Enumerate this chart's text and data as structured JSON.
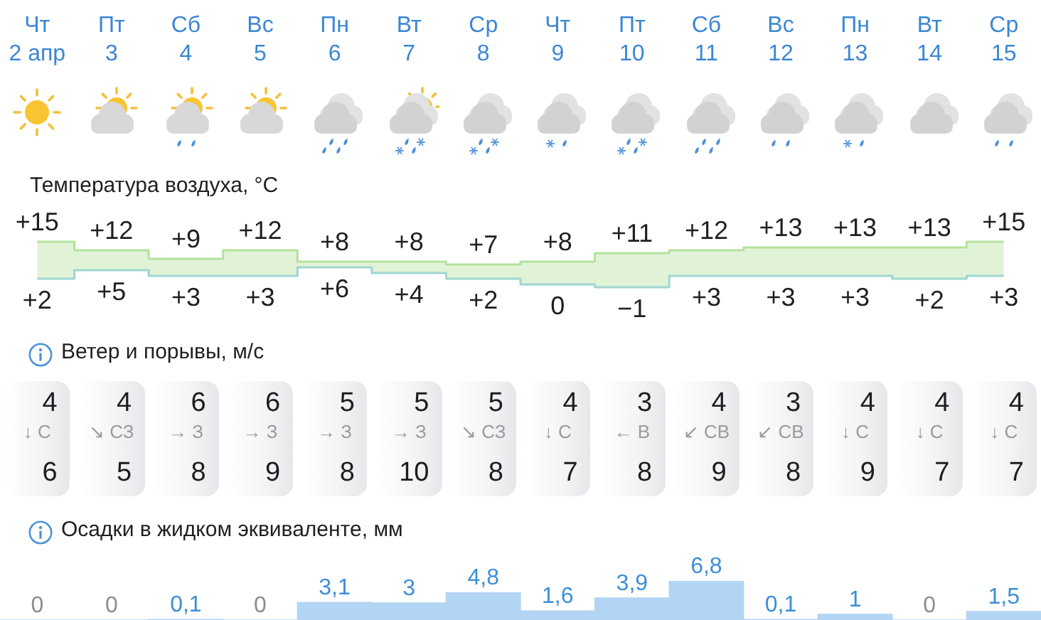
{
  "chart_data": [
    {
      "type": "step",
      "title": "Температура воздуха, °C",
      "categories": [
        "Чт\n2 апр",
        "Пт\n3",
        "Сб\n4",
        "Вс\n5",
        "Пн\n6",
        "Вт\n7",
        "Ср\n8",
        "Чт\n9",
        "Пт\n10",
        "Сб\n11",
        "Вс\n12",
        "Пн\n13",
        "Вт\n14",
        "Ср\n15"
      ],
      "tick_labels": "x",
      "series": [
        {
          "color": "#b4e29c",
          "values": [
            15,
            12,
            9,
            12,
            8,
            8,
            7,
            8,
            11,
            12,
            13,
            13,
            13,
            15
          ],
          "value_labels": [
            "+15",
            "+12",
            "+9",
            "+12",
            "+8",
            "+8",
            "+7",
            "+8",
            "+11",
            "+12",
            "+13",
            "+13",
            "+13",
            "+15"
          ],
          "lower": [
            2,
            5,
            3,
            3,
            6,
            4,
            2,
            0,
            -1,
            3,
            3,
            3,
            2,
            3
          ],
          "upper": [
            15,
            12,
            9,
            12,
            8,
            8,
            7,
            8,
            11,
            12,
            13,
            13,
            13,
            15
          ]
        },
        {
          "color": "#9fd6d0",
          "values": [
            2,
            5,
            3,
            3,
            6,
            4,
            2,
            0,
            -1,
            3,
            3,
            3,
            2,
            3
          ],
          "value_labels": [
            "+2",
            "+5",
            "+3",
            "+3",
            "+6",
            "+4",
            "+2",
            "0",
            "−1",
            "+3",
            "+3",
            "+3",
            "+2",
            "+3"
          ]
        }
      ]
    },
    {
      "type": "other",
      "title": "Ветер и порывы, м/с",
      "annotations": [
        "4",
        "↓ С",
        "6",
        "4",
        "↘ СЗ",
        "5",
        "6",
        "→ З",
        "8",
        "6",
        "→ З",
        "9",
        "5",
        "→ З",
        "8",
        "5",
        "→ З",
        "10",
        "5",
        "↘ СЗ",
        "8",
        "4",
        "↓ С",
        "7",
        "3",
        "← В",
        "8",
        "4",
        "↙ СВ",
        "9",
        "3",
        "↙ СВ",
        "8",
        "4",
        "↓ С",
        "9",
        "4",
        "↓ С",
        "7",
        "4",
        "↓ С",
        "7"
      ]
    },
    {
      "type": "bar",
      "title": "Осадки в жидком эквиваленте, мм",
      "categories": [
        null,
        null,
        null,
        null,
        null,
        null,
        null,
        null,
        null,
        null,
        null,
        null,
        null,
        null
      ],
      "values": [
        0,
        0,
        0.1,
        0,
        3.1,
        3,
        4.8,
        1.6,
        3.9,
        6.8,
        0.1,
        1,
        0,
        1.5
      ],
      "value_labels": [
        "0",
        "0",
        "0,1",
        "0",
        "3,1",
        "3",
        "4,8",
        "1,6",
        "3,9",
        "6,8",
        "0,1",
        "1",
        "0",
        "1,5"
      ],
      "color": "#b3d5f4",
      "tick_labels": false
    }
  ]
}
